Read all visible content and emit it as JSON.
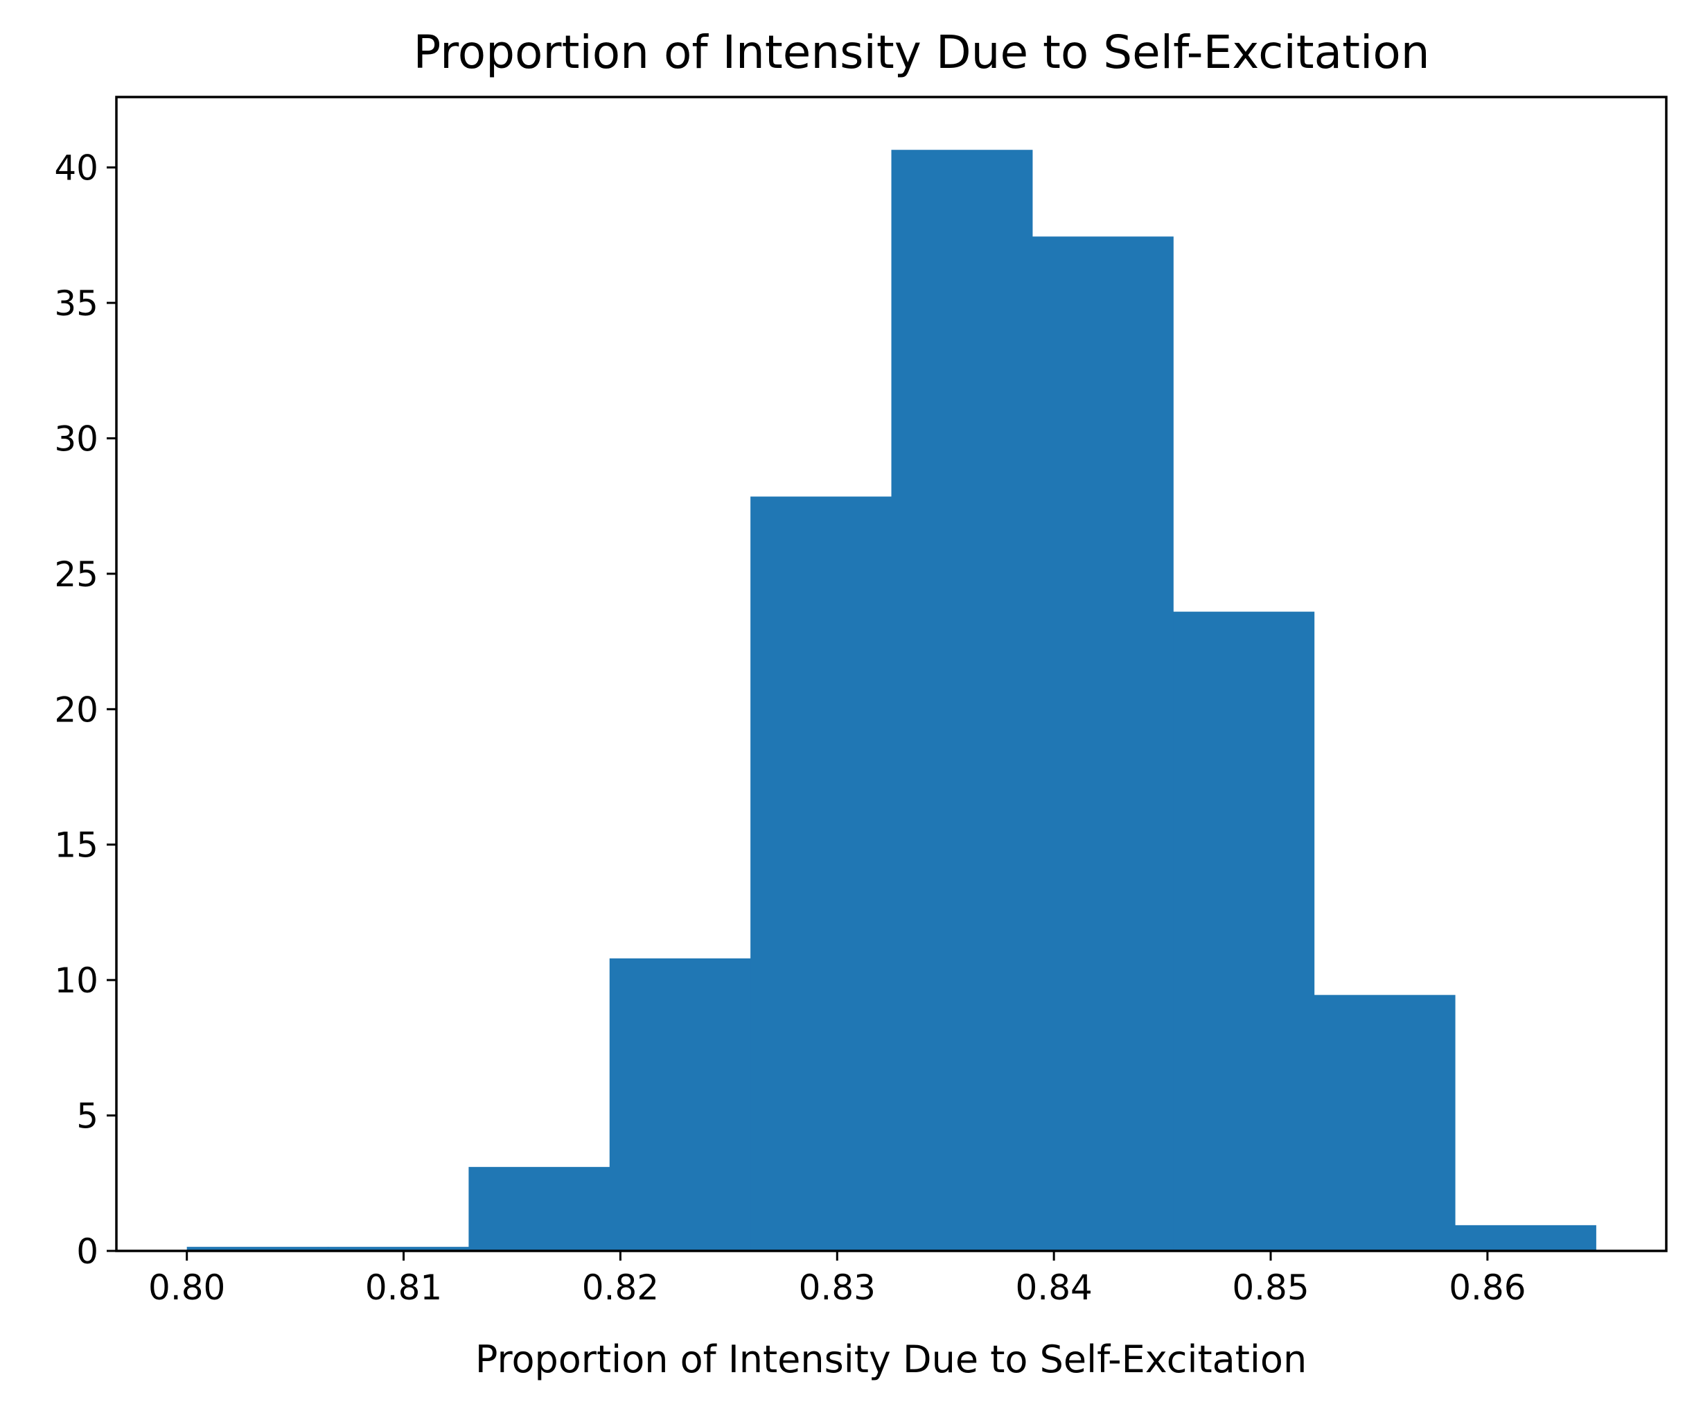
{
  "chart_data": {
    "type": "bar",
    "subtype": "histogram",
    "title": "Proportion of Intensity Due to Self-Excitation",
    "xlabel": "Proportion of Intensity Due to Self-Excitation",
    "ylabel": "",
    "bin_edges": [
      0.8,
      0.8065,
      0.813,
      0.8195,
      0.826,
      0.8325,
      0.839,
      0.8455,
      0.852,
      0.8585,
      0.865
    ],
    "values": [
      0.15,
      0.15,
      3.1,
      10.8,
      27.85,
      40.65,
      37.45,
      23.6,
      9.45,
      0.95
    ],
    "xlim": [
      0.79675,
      0.86825
    ],
    "ylim": [
      0,
      42.6
    ],
    "xticks": [
      0.8,
      0.81,
      0.82,
      0.83,
      0.84,
      0.85,
      0.86
    ],
    "xtick_labels": [
      "0.80",
      "0.81",
      "0.82",
      "0.83",
      "0.84",
      "0.85",
      "0.86"
    ],
    "yticks": [
      0,
      5,
      10,
      15,
      20,
      25,
      30,
      35,
      40
    ],
    "ytick_labels": [
      "0",
      "5",
      "10",
      "15",
      "20",
      "25",
      "30",
      "35",
      "40"
    ],
    "bar_color": "#2077b4",
    "grid": false,
    "legend": "none"
  }
}
